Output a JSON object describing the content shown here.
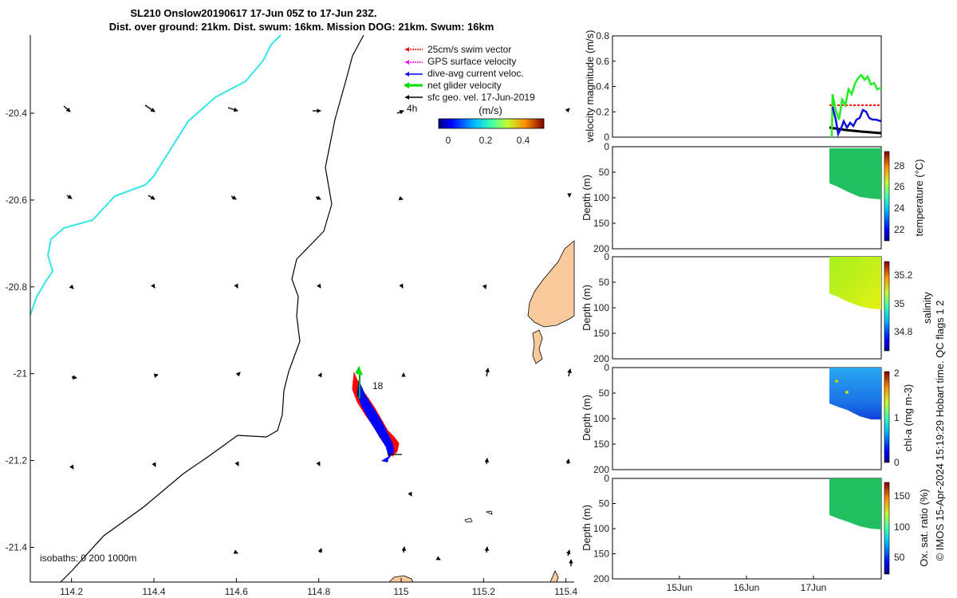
{
  "title": {
    "line1": "SL210 Onslow20190617 17-Jun 05Z to 17-Jun 23Z.",
    "line2": "Dist. over ground: 21km. Dist. swum: 16km. Mission DOG: 21km. Swum: 16km"
  },
  "map": {
    "x_ticks": [
      "114.2",
      "114.4",
      "114.6",
      "114.8",
      "115",
      "115.2",
      "115.4"
    ],
    "y_ticks": [
      "-20.4",
      "-20.6",
      "-20.8",
      "-21",
      "-21.2",
      "-21.4"
    ],
    "xlim": [
      114.1,
      115.42
    ],
    "ylim": [
      -21.48,
      -20.22
    ],
    "legend": [
      {
        "label": "25cm/s swim vector",
        "color": "#ff0000"
      },
      {
        "label": "GPS surface velocity",
        "color": "#ff00ff"
      },
      {
        "label": "dive-avg current veloc.",
        "color": "#0000ff"
      },
      {
        "label": "net glider velocity",
        "color": "#00dd00"
      },
      {
        "label": "sfc geo. vel. 17-Jun-2019",
        "color": "#000000"
      }
    ],
    "legend_extra": "4h",
    "colorbar_label": "(m/s)",
    "colorbar_ticks": [
      "0",
      "0.2",
      "0.4"
    ],
    "track_label": "18",
    "isobath_label": "isobaths: 0   200  1000m",
    "colors": {
      "cyan_isobath": "#33e6e6",
      "land": "#f9cb9c",
      "track_red": "#ff0000",
      "track_blue": "#0000ff",
      "track_green": "#00dd00"
    }
  },
  "panels": {
    "velocity": {
      "ylabel": "velocity magnitude (m/s)",
      "y_ticks": [
        "0",
        "0.2",
        "0.4",
        "0.6",
        "0.8"
      ],
      "ylim": [
        0,
        0.8
      ]
    },
    "temperature": {
      "ylabel": "Depth (m)",
      "y_ticks": [
        "0",
        "50",
        "100",
        "150",
        "200"
      ],
      "cb_label": "temperature (°C)",
      "cb_ticks": [
        "28",
        "26",
        "24",
        "22"
      ]
    },
    "salinity": {
      "ylabel": "Depth (m)",
      "y_ticks": [
        "0",
        "50",
        "100",
        "150",
        "200"
      ],
      "cb_label": "salinity",
      "cb_ticks": [
        "35.2",
        "35",
        "34.8"
      ]
    },
    "chla": {
      "ylabel": "Depth (m)",
      "y_ticks": [
        "0",
        "50",
        "100",
        "150",
        "200"
      ],
      "cb_label": "chl-a (mg m-3)",
      "cb_ticks": [
        "2",
        "1",
        "0"
      ]
    },
    "oxygen": {
      "ylabel": "Depth (m)",
      "y_ticks": [
        "0",
        "50",
        "100",
        "150",
        "200"
      ],
      "cb_label": "Ox. sat. ratio (%)",
      "cb_ticks": [
        "150",
        "100",
        "50"
      ]
    },
    "x_ticks": [
      "15Jun",
      "16Jun",
      "17Jun"
    ]
  },
  "footer_note": "© IMOS 15-Apr-2024 15:19:29 Hobart time. QC flags 1  2"
}
